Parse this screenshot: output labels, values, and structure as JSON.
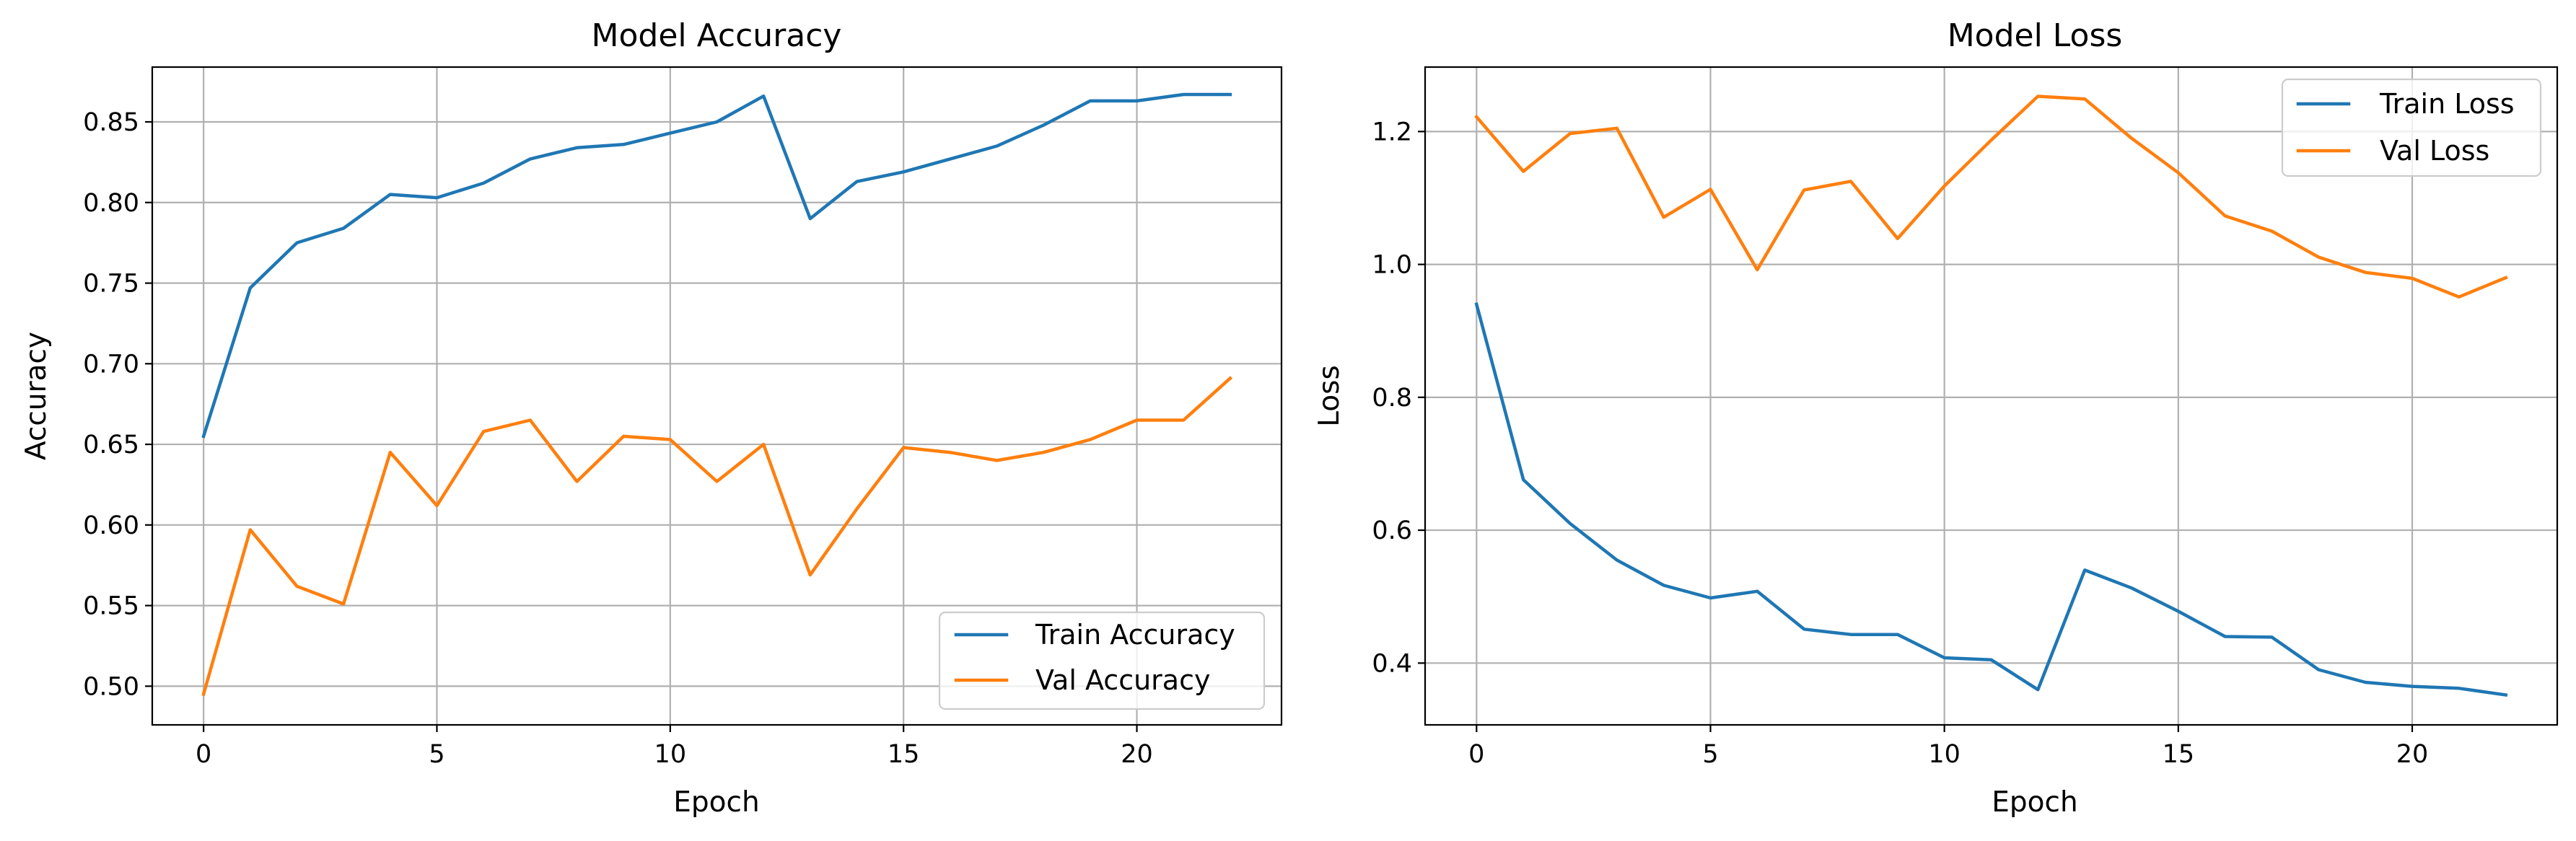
{
  "chart_data": [
    {
      "type": "line",
      "title": "Model Accuracy",
      "xlabel": "Epoch",
      "ylabel": "Accuracy",
      "xlim": [
        -1.1,
        23.1
      ],
      "ylim": [
        0.476,
        0.884
      ],
      "xticks": [
        0,
        5,
        10,
        15,
        20
      ],
      "xtick_labels": [
        "0",
        "5",
        "10",
        "15",
        "20"
      ],
      "yticks": [
        0.5,
        0.55,
        0.6,
        0.65,
        0.7,
        0.75,
        0.8,
        0.85
      ],
      "ytick_labels": [
        "0.50",
        "0.55",
        "0.60",
        "0.65",
        "0.70",
        "0.75",
        "0.80",
        "0.85"
      ],
      "grid": true,
      "legend_position": "lower-right",
      "x": [
        0,
        1,
        2,
        3,
        4,
        5,
        6,
        7,
        8,
        9,
        10,
        11,
        12,
        13,
        14,
        15,
        16,
        17,
        18,
        19,
        20,
        21,
        22
      ],
      "series": [
        {
          "name": "Train Accuracy",
          "color": "#1f77b4",
          "values": [
            0.655,
            0.747,
            0.775,
            0.784,
            0.805,
            0.803,
            0.812,
            0.827,
            0.834,
            0.836,
            0.843,
            0.85,
            0.866,
            0.79,
            0.813,
            0.819,
            0.827,
            0.835,
            0.848,
            0.863,
            0.863,
            0.867,
            0.867
          ]
        },
        {
          "name": "Val Accuracy",
          "color": "#ff7f0e",
          "values": [
            0.495,
            0.597,
            0.562,
            0.551,
            0.645,
            0.612,
            0.658,
            0.665,
            0.627,
            0.655,
            0.653,
            0.627,
            0.65,
            0.569,
            0.61,
            0.648,
            0.645,
            0.64,
            0.645,
            0.653,
            0.665,
            0.665,
            0.691
          ]
        }
      ]
    },
    {
      "type": "line",
      "title": "Model Loss",
      "xlabel": "Epoch",
      "ylabel": "Loss",
      "xlim": [
        -1.1,
        23.1
      ],
      "ylim": [
        0.307,
        1.297
      ],
      "xticks": [
        0,
        5,
        10,
        15,
        20
      ],
      "xtick_labels": [
        "0",
        "5",
        "10",
        "15",
        "20"
      ],
      "yticks": [
        0.4,
        0.6,
        0.8,
        1.0,
        1.2
      ],
      "ytick_labels": [
        "0.4",
        "0.6",
        "0.8",
        "1.0",
        "1.2"
      ],
      "grid": true,
      "legend_position": "upper-right",
      "x": [
        0,
        1,
        2,
        3,
        4,
        5,
        6,
        7,
        8,
        9,
        10,
        11,
        12,
        13,
        14,
        15,
        16,
        17,
        18,
        19,
        20,
        21,
        22
      ],
      "series": [
        {
          "name": "Train Loss",
          "color": "#1f77b4",
          "values": [
            0.94,
            0.676,
            0.61,
            0.555,
            0.517,
            0.498,
            0.508,
            0.451,
            0.443,
            0.443,
            0.408,
            0.405,
            0.36,
            0.54,
            0.513,
            0.478,
            0.44,
            0.439,
            0.39,
            0.371,
            0.365,
            0.362,
            0.352
          ]
        },
        {
          "name": "Val Loss",
          "color": "#ff7f0e",
          "values": [
            1.222,
            1.14,
            1.197,
            1.205,
            1.071,
            1.113,
            0.992,
            1.112,
            1.125,
            1.039,
            1.118,
            1.187,
            1.253,
            1.249,
            1.19,
            1.138,
            1.073,
            1.05,
            1.011,
            0.988,
            0.979,
            0.951,
            0.98
          ]
        }
      ]
    }
  ]
}
